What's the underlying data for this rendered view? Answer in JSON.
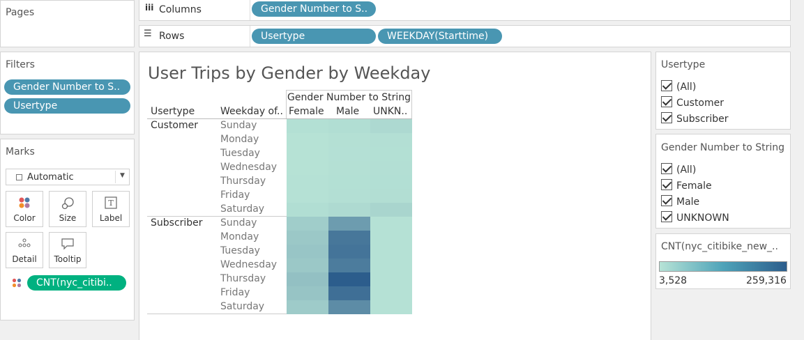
{
  "pages": {
    "title": "Pages"
  },
  "columns_shelf": {
    "label": "Columns",
    "icon": "columns-icon",
    "pills": [
      "Gender Number to S.."
    ]
  },
  "rows_shelf": {
    "label": "Rows",
    "icon": "rows-icon",
    "pills": [
      "Usertype",
      "WEEKDAY(Starttime)"
    ]
  },
  "filters": {
    "title": "Filters",
    "pills": [
      "Gender Number to S..",
      "Usertype"
    ]
  },
  "marks": {
    "title": "Marks",
    "mark_type": "Automatic",
    "cards": {
      "color": "Color",
      "size": "Size",
      "label": "Label",
      "detail": "Detail",
      "tooltip": "Tooltip"
    },
    "color_field": "CNT(nyc_citibi.."
  },
  "viz": {
    "title": "User Trips by Gender by Weekday",
    "col_group_header": "Gender Number to String",
    "row_headers": [
      "Usertype",
      "Weekday of.."
    ],
    "columns": [
      "Female",
      "Male",
      "UNKN.."
    ],
    "groups": [
      {
        "name": "Customer",
        "days": [
          "Sunday",
          "Monday",
          "Tuesday",
          "Wednesday",
          "Thursday",
          "Friday",
          "Saturday"
        ]
      },
      {
        "name": "Subscriber",
        "days": [
          "Sunday",
          "Monday",
          "Tuesday",
          "Wednesday",
          "Thursday",
          "Friday",
          "Saturday"
        ]
      }
    ]
  },
  "chart_data": {
    "type": "heatmap",
    "title": "User Trips by Gender by Weekday",
    "x": [
      "Female",
      "Male",
      "UNKN.."
    ],
    "y": [
      "Customer / Sunday",
      "Customer / Monday",
      "Customer / Tuesday",
      "Customer / Wednesday",
      "Customer / Thursday",
      "Customer / Friday",
      "Customer / Saturday",
      "Subscriber / Sunday",
      "Subscriber / Monday",
      "Subscriber / Tuesday",
      "Subscriber / Wednesday",
      "Subscriber / Thursday",
      "Subscriber / Friday",
      "Subscriber / Saturday"
    ],
    "values": [
      [
        10000,
        14000,
        22000
      ],
      [
        6000,
        9000,
        11000
      ],
      [
        5500,
        8500,
        10000
      ],
      [
        6000,
        9000,
        10500
      ],
      [
        7000,
        10000,
        12000
      ],
      [
        8000,
        11000,
        13000
      ],
      [
        14000,
        20000,
        30000
      ],
      [
        45000,
        140000,
        8000
      ],
      [
        55000,
        210000,
        7000
      ],
      [
        60000,
        215000,
        7000
      ],
      [
        55000,
        200000,
        7000
      ],
      [
        70000,
        259316,
        7500
      ],
      [
        62000,
        225000,
        7000
      ],
      [
        50000,
        170000,
        6500
      ]
    ],
    "color_range": [
      3528,
      259316
    ],
    "color_scale": [
      "#b7e3d6",
      "#2c5d8c"
    ]
  },
  "legends": {
    "usertype": {
      "title": "Usertype",
      "items": [
        "(All)",
        "Customer",
        "Subscriber"
      ]
    },
    "gender": {
      "title": "Gender Number to String",
      "items": [
        "(All)",
        "Female",
        "Male",
        "UNKNOWN"
      ]
    },
    "color": {
      "title": "CNT(nyc_citibike_new_..",
      "min_label": "3,528",
      "max_label": "259,316"
    }
  }
}
